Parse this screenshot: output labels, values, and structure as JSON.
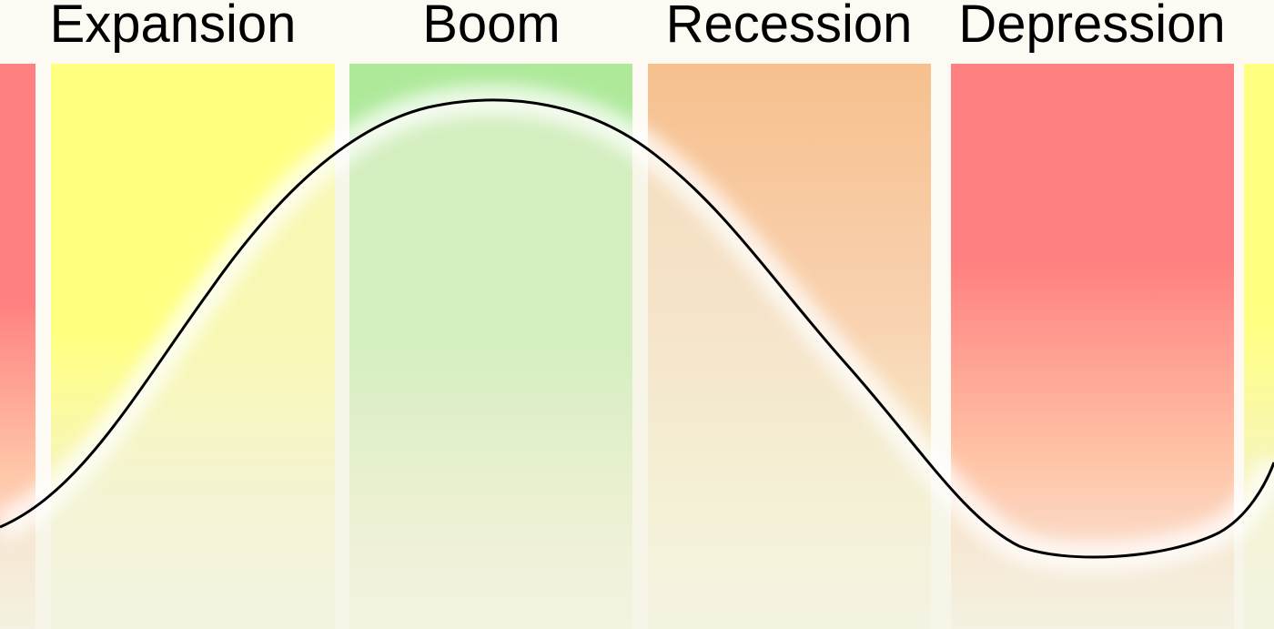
{
  "diagram": {
    "title": "",
    "phases": [
      {
        "name": "Expansion",
        "color": "#ffff80"
      },
      {
        "name": "Boom",
        "color": "#aee99a"
      },
      {
        "name": "Recession",
        "color": "#f6c08e"
      },
      {
        "name": "Depression",
        "color": "#ff8080"
      }
    ],
    "edge_colors": {
      "left_strip": "#ff8080",
      "right_strip": "#ffff80"
    },
    "background_color": "#fdf9f3",
    "fade_color": "#f3f3df",
    "curve_color": "#000000"
  }
}
